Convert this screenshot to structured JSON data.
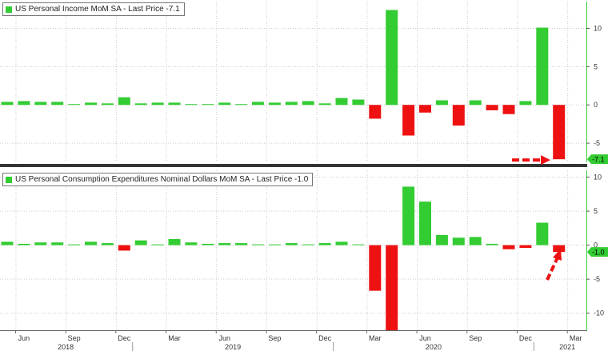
{
  "colors": {
    "positive": "#33cc33",
    "negative": "#ee1111",
    "arrow": "#ee1111",
    "grid": "#cccccc",
    "panel_divider": "#333333"
  },
  "x_axis": {
    "month_ticks": [
      "Jun",
      "Sep",
      "Dec",
      "Mar",
      "Jun",
      "Sep",
      "Dec",
      "Mar",
      "Jun",
      "Sep",
      "Dec",
      "Mar"
    ],
    "year_ticks": [
      "2018",
      "2019",
      "2020",
      "2021"
    ]
  },
  "chart_data": [
    {
      "type": "bar",
      "title": "US Personal Income MoM SA - Last Price -7.1",
      "last_value_label": "-7.1",
      "ylim": [
        -7.5,
        13.5
      ],
      "yticks": [
        -5,
        0,
        5,
        10
      ],
      "grid": true,
      "categories": [
        "2018-05",
        "2018-06",
        "2018-07",
        "2018-08",
        "2018-09",
        "2018-10",
        "2018-11",
        "2018-12",
        "2019-01",
        "2019-02",
        "2019-03",
        "2019-04",
        "2019-05",
        "2019-06",
        "2019-07",
        "2019-08",
        "2019-09",
        "2019-10",
        "2019-11",
        "2019-12",
        "2020-01",
        "2020-02",
        "2020-03",
        "2020-04",
        "2020-05",
        "2020-06",
        "2020-07",
        "2020-08",
        "2020-09",
        "2020-10",
        "2020-11",
        "2020-12",
        "2021-01",
        "2021-02"
      ],
      "values": [
        0.4,
        0.5,
        0.4,
        0.4,
        0.1,
        0.3,
        0.2,
        1.0,
        0.2,
        0.3,
        0.3,
        0.1,
        0.1,
        0.3,
        0.1,
        0.4,
        0.3,
        0.4,
        0.5,
        0.2,
        0.9,
        0.7,
        -1.8,
        12.4,
        -4.0,
        -1.0,
        0.6,
        -2.7,
        0.6,
        -0.7,
        -1.2,
        0.5,
        10.1,
        -7.1
      ]
    },
    {
      "type": "bar",
      "title": "US Personal Consumption Expenditures Nominal Dollars MoM SA - Last Price -1.0",
      "last_value_label": "-1.0",
      "ylim": [
        -12.5,
        11.0
      ],
      "yticks": [
        -10,
        -5,
        0,
        5,
        10
      ],
      "grid": true,
      "categories": [
        "2018-05",
        "2018-06",
        "2018-07",
        "2018-08",
        "2018-09",
        "2018-10",
        "2018-11",
        "2018-12",
        "2019-01",
        "2019-02",
        "2019-03",
        "2019-04",
        "2019-05",
        "2019-06",
        "2019-07",
        "2019-08",
        "2019-09",
        "2019-10",
        "2019-11",
        "2019-12",
        "2020-01",
        "2020-02",
        "2020-03",
        "2020-04",
        "2020-05",
        "2020-06",
        "2020-07",
        "2020-08",
        "2020-09",
        "2020-10",
        "2020-11",
        "2020-12",
        "2021-01",
        "2021-02"
      ],
      "values": [
        0.5,
        0.2,
        0.4,
        0.4,
        0.1,
        0.5,
        0.3,
        -0.8,
        0.7,
        0.1,
        0.9,
        0.4,
        0.2,
        0.3,
        0.3,
        0.1,
        0.1,
        0.3,
        0.1,
        0.3,
        0.5,
        0.0,
        -6.7,
        -12.5,
        8.6,
        6.4,
        1.5,
        1.1,
        1.2,
        0.2,
        -0.6,
        -0.4,
        3.3,
        -1.0
      ]
    }
  ]
}
